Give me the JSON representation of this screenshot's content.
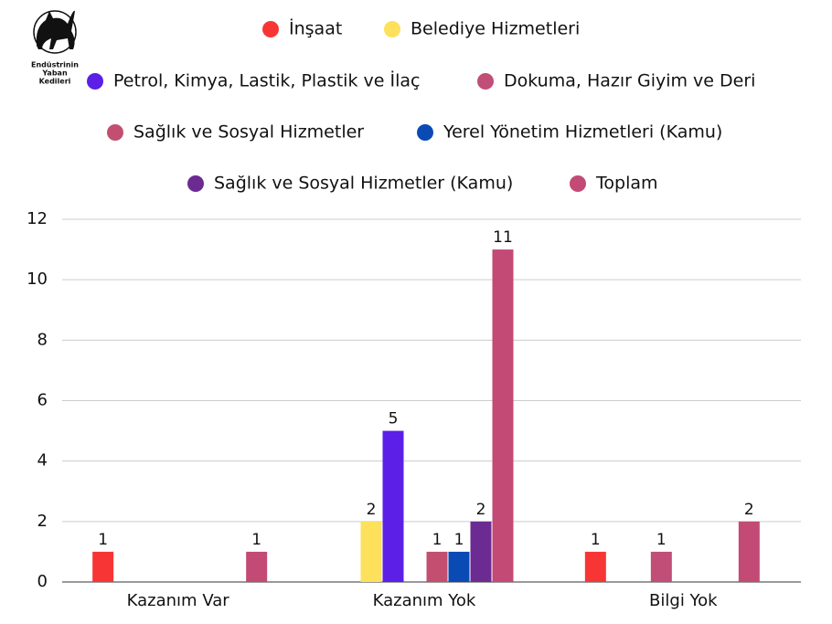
{
  "logo": {
    "lines": [
      "Endüstrinin",
      "Yaban",
      "Kedileri"
    ]
  },
  "chart_data": {
    "type": "bar",
    "categories": [
      "Kazanım Var",
      "Kazanım Yok",
      "Bilgi Yok"
    ],
    "series": [
      {
        "name": "İnşaat",
        "color": "#f83535",
        "values": [
          1,
          null,
          1
        ]
      },
      {
        "name": "Belediye Hizmetleri",
        "color": "#fde05c",
        "values": [
          null,
          2,
          null
        ]
      },
      {
        "name": "Petrol, Kimya, Lastik, Plastik ve İlaç",
        "color": "#5b1fe8",
        "values": [
          null,
          5,
          null
        ]
      },
      {
        "name": "Dokuma, Hazır Giyim ve Deri",
        "color": "#c14e77",
        "values": [
          null,
          null,
          1
        ]
      },
      {
        "name": "Sağlık ve Sosyal Hizmetler",
        "color": "#c24f70",
        "values": [
          null,
          1,
          null
        ]
      },
      {
        "name": "Yerel Yönetim Hizmetleri (Kamu)",
        "color": "#0a4ab5",
        "values": [
          null,
          1,
          null
        ]
      },
      {
        "name": "Sağlık ve Sosyal Hizmetler (Kamu)",
        "color": "#6c2a93",
        "values": [
          null,
          2,
          null
        ]
      },
      {
        "name": "Toplam",
        "color": "#c34a75",
        "values": [
          1,
          11,
          2
        ]
      }
    ],
    "ylim": [
      0,
      12
    ],
    "yticks": [
      0,
      2,
      4,
      6,
      8,
      10,
      12
    ],
    "grid": true
  }
}
